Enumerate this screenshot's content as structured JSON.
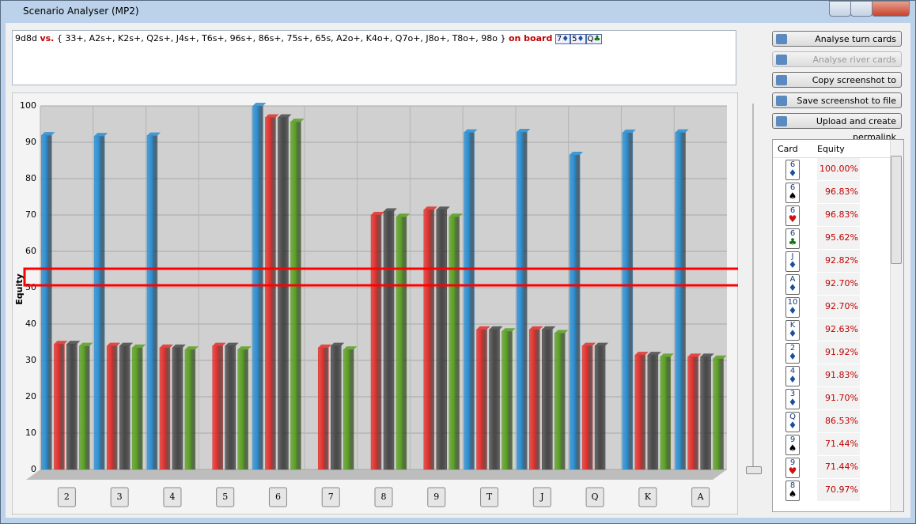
{
  "window": {
    "title": "Scenario Analyser (MP2)"
  },
  "hand": {
    "hero": "9d8d",
    "versus": "vs.",
    "range": "{ 33+, A2s+, K2s+, Q2s+, J4s+, T6s+, 96s+, 86s+, 75s+, 65s, A2o+, K4o+, Q7o+, J8o+, T8o+, 98o }",
    "on_board": "on board",
    "board": [
      {
        "rank": "7",
        "suit": "♦"
      },
      {
        "rank": "5",
        "suit": "♦"
      },
      {
        "rank": "Q",
        "suit": "♣"
      }
    ]
  },
  "buttons": [
    "Analyse turn cards",
    "Analyse river cards",
    "Copy screenshot to clipboard",
    "Save screenshot to file",
    "Upload and create permalink"
  ],
  "table": {
    "columns": [
      "Card",
      "Equity"
    ],
    "rows": [
      {
        "rank": "6",
        "suit": "♦",
        "equity": "100.00%"
      },
      {
        "rank": "6",
        "suit": "♠",
        "equity": "96.83%"
      },
      {
        "rank": "6",
        "suit": "♥",
        "equity": "96.83%"
      },
      {
        "rank": "6",
        "suit": "♣",
        "equity": "95.62%"
      },
      {
        "rank": "J",
        "suit": "♦",
        "equity": "92.82%"
      },
      {
        "rank": "A",
        "suit": "♦",
        "equity": "92.70%"
      },
      {
        "rank": "10",
        "suit": "♦",
        "equity": "92.70%"
      },
      {
        "rank": "K",
        "suit": "♦",
        "equity": "92.63%"
      },
      {
        "rank": "2",
        "suit": "♦",
        "equity": "91.92%"
      },
      {
        "rank": "4",
        "suit": "♦",
        "equity": "91.83%"
      },
      {
        "rank": "3",
        "suit": "♦",
        "equity": "91.70%"
      },
      {
        "rank": "Q",
        "suit": "♦",
        "equity": "86.53%"
      },
      {
        "rank": "9",
        "suit": "♠",
        "equity": "71.44%"
      },
      {
        "rank": "9",
        "suit": "♥",
        "equity": "71.44%"
      },
      {
        "rank": "8",
        "suit": "♠",
        "equity": "70.97%"
      }
    ]
  },
  "chart_data": {
    "type": "bar",
    "y_label": "Equity",
    "categories": [
      "2",
      "3",
      "4",
      "5",
      "6",
      "7",
      "8",
      "9",
      "T",
      "J",
      "Q",
      "K",
      "A"
    ],
    "series": [
      {
        "color": "#2a8ed2",
        "values": [
          91.92,
          91.7,
          91.83,
          null,
          100,
          null,
          null,
          null,
          92.7,
          92.82,
          86.53,
          92.63,
          92.7
        ]
      },
      {
        "color": "#e2302c",
        "values": [
          34.5,
          34,
          33.5,
          34,
          96.83,
          33.5,
          70,
          71.44,
          38.5,
          38.5,
          34,
          31.5,
          31
        ]
      },
      {
        "color": "#4a4a4a",
        "values": [
          34.5,
          34,
          33.5,
          34,
          96.83,
          34,
          70.97,
          71.44,
          38.5,
          38.5,
          34,
          31.5,
          31
        ]
      },
      {
        "color": "#5aa022",
        "values": [
          34,
          33.5,
          33,
          33,
          95.62,
          33,
          69.5,
          69.5,
          38,
          37.5,
          null,
          31,
          30.5
        ]
      }
    ],
    "ylim": [
      0,
      100
    ],
    "yticks": [
      0,
      10,
      20,
      30,
      40,
      50,
      60,
      70,
      80,
      90,
      100
    ],
    "grid": true
  }
}
